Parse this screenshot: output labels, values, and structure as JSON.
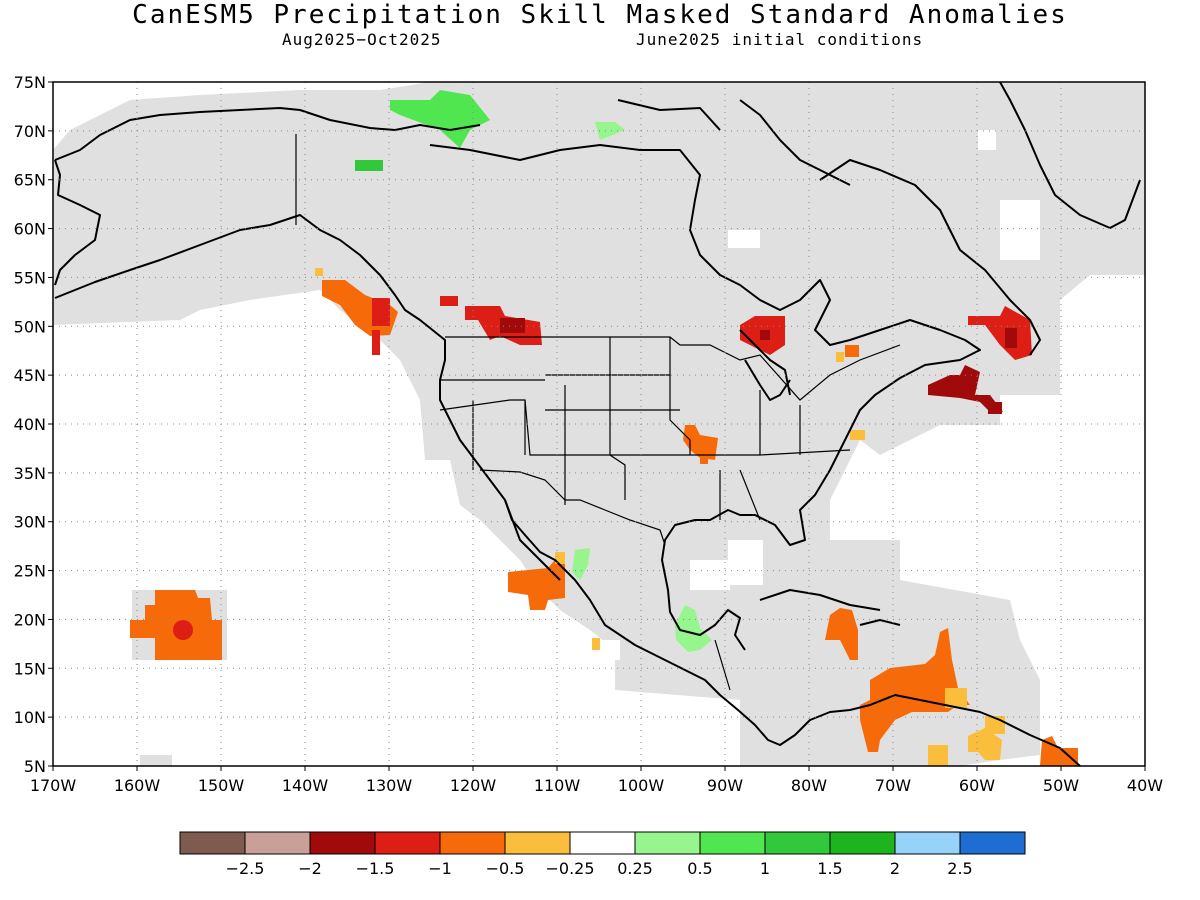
{
  "title": "CanESM5 Precipitation Skill Masked Standard Anomalies",
  "subtitle_left": "Aug2025−Oct2025",
  "subtitle_right": "June2025 initial conditions",
  "axes": {
    "lat_ticks": [
      "5N",
      "10N",
      "15N",
      "20N",
      "25N",
      "30N",
      "35N",
      "40N",
      "45N",
      "50N",
      "55N",
      "60N",
      "65N",
      "70N",
      "75N"
    ],
    "lon_ticks": [
      "170W",
      "160W",
      "150W",
      "140W",
      "130W",
      "120W",
      "110W",
      "100W",
      "90W",
      "80W",
      "70W",
      "60W",
      "50W",
      "40W"
    ],
    "lat_range": [
      5,
      75
    ],
    "lon_range": [
      -170,
      -40
    ],
    "grid": "dotted"
  },
  "colorbar": {
    "colors": [
      "#7f5a4e",
      "#c9a097",
      "#a00a0a",
      "#dc1e14",
      "#f76a0a",
      "#fbbd3c",
      "#ffffff",
      "#96f58c",
      "#50e650",
      "#32c83c",
      "#1eb41e",
      "#96d2fa",
      "#1e6ed2"
    ],
    "labels": [
      "−2.5",
      "−2",
      "−1.5",
      "−1",
      "−0.5",
      "−0.25",
      "0.25",
      "0.5",
      "1",
      "1.5",
      "2",
      "2.5"
    ]
  },
  "colors": {
    "no_skill_mask": "#e0e0e0",
    "coastline": "#000000"
  }
}
